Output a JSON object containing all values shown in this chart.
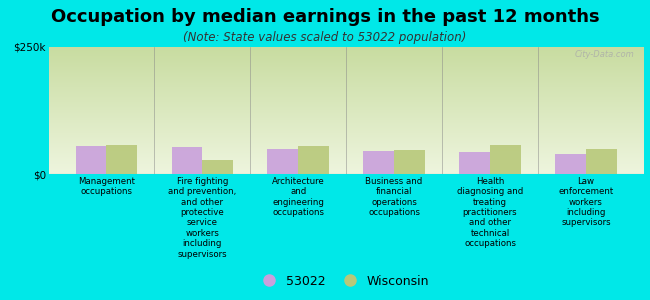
{
  "title": "Occupation by median earnings in the past 12 months",
  "subtitle": "(Note: State values scaled to 53022 population)",
  "background_color": "#00e8e8",
  "categories": [
    "Management\noccupations",
    "Fire fighting\nand prevention,\nand other\nprotective\nservice\nworkers\nincluding\nsupervisors",
    "Architecture\nand\nengineering\noccupations",
    "Business and\nfinancial\noperations\noccupations",
    "Health\ndiagnosing and\ntreating\npractitioners\nand other\ntechnical\noccupations",
    "Law\nenforcement\nworkers\nincluding\nsupervisors"
  ],
  "values_53022": [
    55000,
    52000,
    50000,
    46000,
    43000,
    40000
  ],
  "values_wisconsin": [
    57000,
    28000,
    55000,
    47000,
    57000,
    50000
  ],
  "color_53022": "#c9a0dc",
  "color_wisconsin": "#b8c87a",
  "ylim": [
    0,
    250000
  ],
  "yticks": [
    0,
    250000
  ],
  "ytick_labels": [
    "$0",
    "$250k"
  ],
  "legend_53022": "53022",
  "legend_wisconsin": "Wisconsin",
  "bar_width": 0.32,
  "plot_bg_top_color": "#c8dca0",
  "plot_bg_bottom_color": "#eef5de",
  "title_fontsize": 13,
  "subtitle_fontsize": 8.5,
  "axis_fontsize": 7.5,
  "legend_fontsize": 9,
  "watermark": "City-Data.com"
}
